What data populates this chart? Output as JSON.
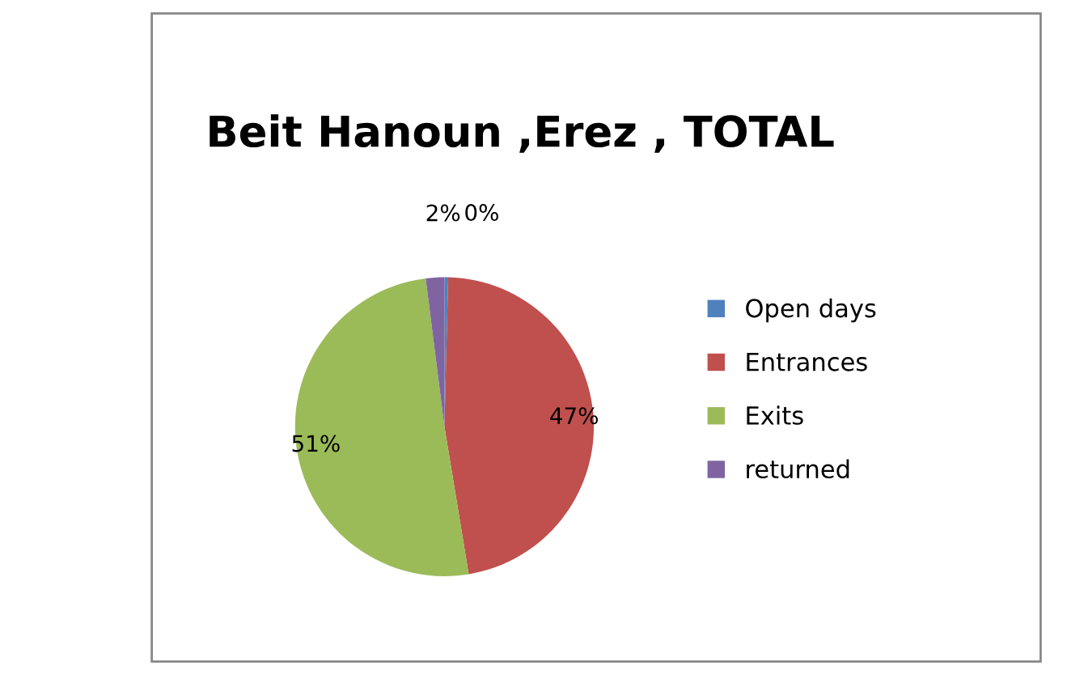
{
  "chart_data": {
    "type": "pie",
    "title": "Beit Hanoun ,Erez , TOTAL",
    "categories": [
      "Open days",
      "Entrances",
      "Exits",
      "returned"
    ],
    "values": [
      0.4,
      47,
      50.6,
      2
    ],
    "value_labels": [
      "0%",
      "47%",
      "51%",
      "2%"
    ],
    "colors": [
      "#4f81bd",
      "#c0504d",
      "#9bbb59",
      "#8064a2"
    ],
    "legend": "right"
  }
}
